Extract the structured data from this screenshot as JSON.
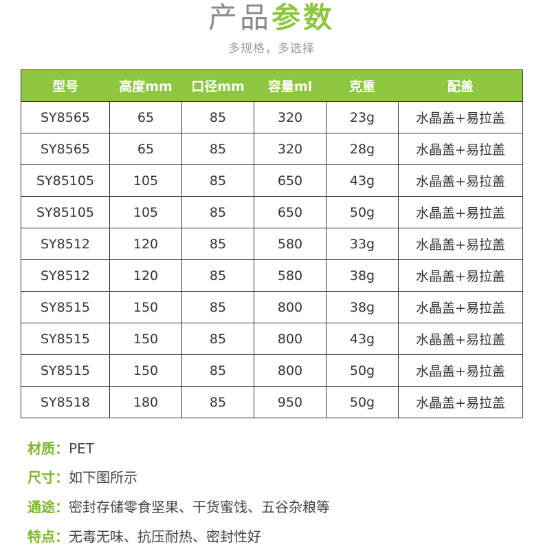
{
  "title": {
    "part1": "产品",
    "part2": "参数",
    "subtitle": "多规格，多选择"
  },
  "colors": {
    "accent": "#8dc63f"
  },
  "table": {
    "headers": [
      "型号",
      "高度mm",
      "口径mm",
      "容量ml",
      "克重",
      "配盖"
    ],
    "rows": [
      [
        "SY8565",
        "65",
        "85",
        "320",
        "23g",
        "水晶盖+易拉盖"
      ],
      [
        "SY8565",
        "65",
        "85",
        "320",
        "28g",
        "水晶盖+易拉盖"
      ],
      [
        "SY85105",
        "105",
        "85",
        "650",
        "43g",
        "水晶盖+易拉盖"
      ],
      [
        "SY85105",
        "105",
        "85",
        "650",
        "50g",
        "水晶盖+易拉盖"
      ],
      [
        "SY8512",
        "120",
        "85",
        "580",
        "33g",
        "水晶盖+易拉盖"
      ],
      [
        "SY8512",
        "120",
        "85",
        "580",
        "38g",
        "水晶盖+易拉盖"
      ],
      [
        "SY8515",
        "150",
        "85",
        "800",
        "38g",
        "水晶盖+易拉盖"
      ],
      [
        "SY8515",
        "150",
        "85",
        "800",
        "43g",
        "水晶盖+易拉盖"
      ],
      [
        "SY8515",
        "150",
        "85",
        "800",
        "50g",
        "水晶盖+易拉盖"
      ],
      [
        "SY8518",
        "180",
        "85",
        "950",
        "50g",
        "水晶盖+易拉盖"
      ]
    ]
  },
  "info": [
    {
      "label": "材质：",
      "value": "PET"
    },
    {
      "label": "尺寸：",
      "value": "如下图所示"
    },
    {
      "label": "通途：",
      "value": "密封存储零食坚果、干货蜜饯、五谷杂粮等"
    },
    {
      "label": "特点：",
      "value": "无毒无味、抗压耐热、密封性好"
    }
  ]
}
